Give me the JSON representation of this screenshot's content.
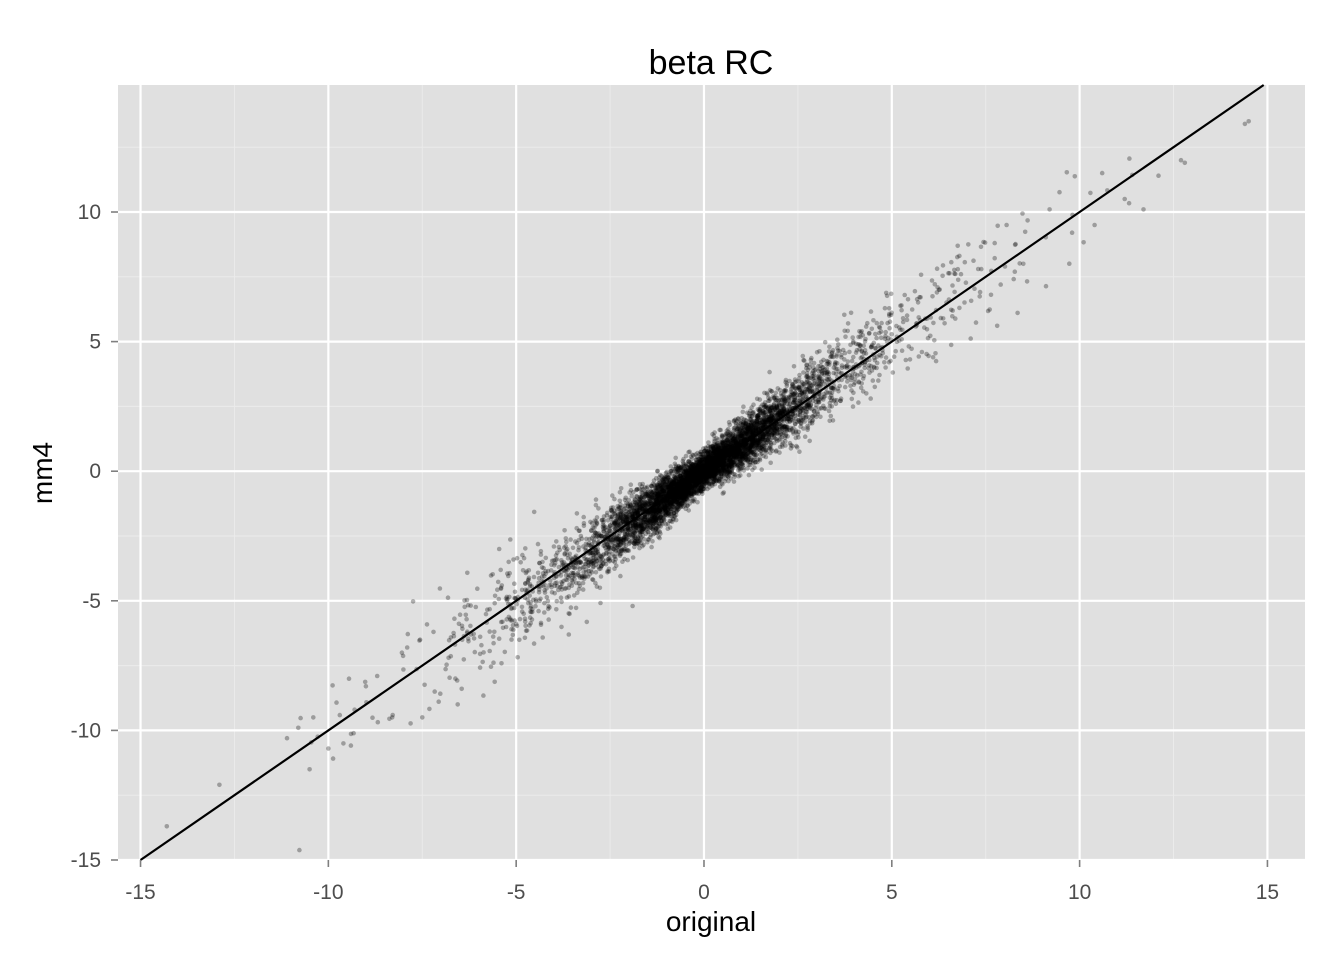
{
  "chart_data": {
    "type": "scatter",
    "title": "beta RC",
    "xlabel": "original",
    "ylabel": "mm4",
    "xlim": [
      -15.6,
      16
    ],
    "ylim": [
      -15,
      14.9
    ],
    "x_ticks": [
      -15,
      -10,
      -5,
      0,
      5,
      10,
      15
    ],
    "x_tick_labels": [
      "-15",
      "-10",
      "-5",
      "0",
      "5",
      "10",
      "15"
    ],
    "y_ticks": [
      -15,
      -10,
      -5,
      0,
      5,
      10
    ],
    "y_tick_labels": [
      "-15",
      "-10",
      "-5",
      "0",
      "5",
      "10"
    ],
    "grid": true,
    "reference_line": {
      "slope": 1,
      "intercept": 0
    },
    "point_color": "#000000",
    "point_opacity": 0.3,
    "panel_background": "#e0e0e0",
    "approx_point_count": 6000,
    "points_sample": [
      [
        -14.3,
        -13.7
      ],
      [
        -12.9,
        -12.1
      ],
      [
        -10.5,
        -11.5
      ],
      [
        -10.0,
        -10.7
      ],
      [
        -9.6,
        -10.5
      ],
      [
        -11.1,
        -10.3
      ],
      [
        -10.8,
        -9.9
      ],
      [
        -10.4,
        -9.5
      ],
      [
        -9.3,
        -9.2
      ],
      [
        -9.0,
        -8.3
      ],
      [
        -8.7,
        -7.9
      ],
      [
        -8.3,
        -9.5
      ],
      [
        -7.5,
        -9.5
      ],
      [
        -7.9,
        -6.8
      ],
      [
        -7.2,
        -6.2
      ],
      [
        -6.8,
        -7.2
      ],
      [
        -6.2,
        -6.3
      ],
      [
        -5.4,
        -4.5
      ],
      [
        -5.0,
        -5.9
      ],
      [
        -5.2,
        -3.5
      ],
      [
        -4.8,
        -5.5
      ],
      [
        -4.3,
        -3.5
      ],
      [
        -3.6,
        -6.3
      ],
      [
        -3.3,
        -4.1
      ],
      [
        -3.0,
        -2.3
      ],
      [
        -2.6,
        -3.2
      ],
      [
        -2.1,
        -2.6
      ],
      [
        -1.9,
        -5.2
      ],
      [
        -1.5,
        -0.6
      ],
      [
        -1.2,
        -1.9
      ],
      [
        -0.8,
        -0.2
      ],
      [
        -0.4,
        -0.9
      ],
      [
        -0.1,
        0.2
      ],
      [
        0.3,
        0.1
      ],
      [
        0.5,
        1.1
      ],
      [
        0.8,
        -0.4
      ],
      [
        1.1,
        1.8
      ],
      [
        1.5,
        0.9
      ],
      [
        1.8,
        2.1
      ],
      [
        2.2,
        1.6
      ],
      [
        2.6,
        3.0
      ],
      [
        3.1,
        2.1
      ],
      [
        3.5,
        4.2
      ],
      [
        3.9,
        3.3
      ],
      [
        4.3,
        5.1
      ],
      [
        4.8,
        4.2
      ],
      [
        5.3,
        5.9
      ],
      [
        5.8,
        4.6
      ],
      [
        6.2,
        6.9
      ],
      [
        6.8,
        6.3
      ],
      [
        7.3,
        7.8
      ],
      [
        7.9,
        7.2
      ],
      [
        8.5,
        8.0
      ],
      [
        9.2,
        10.1
      ],
      [
        9.8,
        9.2
      ],
      [
        10.4,
        9.5
      ],
      [
        10.6,
        11.5
      ],
      [
        11.2,
        10.5
      ],
      [
        11.7,
        10.1
      ],
      [
        12.1,
        11.4
      ],
      [
        12.7,
        12.0
      ],
      [
        12.8,
        11.9
      ],
      [
        14.4,
        13.4
      ],
      [
        14.5,
        13.5
      ]
    ]
  }
}
